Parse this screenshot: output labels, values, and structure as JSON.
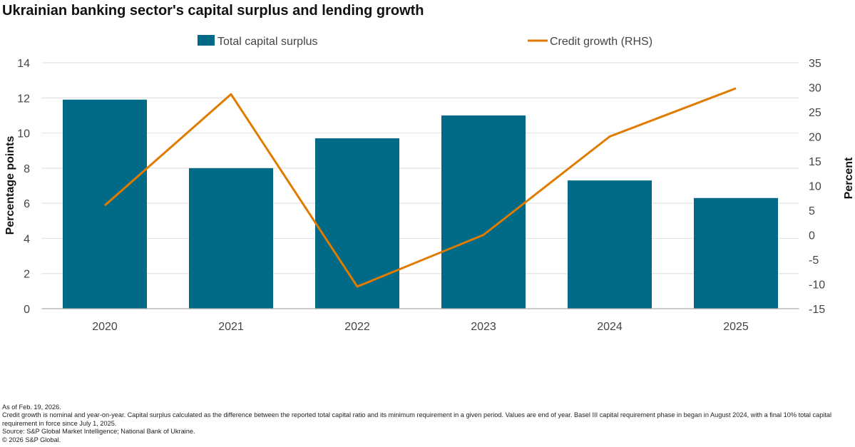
{
  "title": "Ukrainian banking sector's capital surplus and lending growth",
  "notes": [
    "As of Feb. 19, 2026.",
    "Credit growth is nominal and year-on-year. Capital surplus calculated as the difference between the reported total capital ratio and its minimum requirement in a given period. Values are end of year. Basel III capital requirement phase in began in August 2024, with a final 10% total capital requirement in force since July 1, 2025.",
    "Source: S&P Global Market Intelligence; National Bank of Ukraine.",
    "© 2026 S&P Global."
  ],
  "chart_data": {
    "type": "bar+line",
    "categories": [
      "2020",
      "2021",
      "2022",
      "2023",
      "2024",
      "2025"
    ],
    "series": [
      {
        "name": "Total capital surplus",
        "type": "bar",
        "axis": "left",
        "color": "#006a87",
        "values": [
          11.9,
          8.0,
          9.7,
          11.0,
          7.3,
          6.3
        ]
      },
      {
        "name": "Credit growth (RHS)",
        "type": "line",
        "axis": "right",
        "color": "#e07b00",
        "values": [
          6.0,
          28.6,
          -10.5,
          0.0,
          20.0,
          29.8
        ]
      }
    ],
    "ylabel": "Percentage points",
    "y2label": "Percent",
    "ylim": [
      0,
      14
    ],
    "yticks": [
      0,
      2,
      4,
      6,
      8,
      10,
      12,
      14
    ],
    "y2lim": [
      -15,
      35
    ],
    "y2ticks": [
      -15,
      -10,
      -5,
      0,
      5,
      10,
      15,
      20,
      25,
      30,
      35
    ],
    "grid": true,
    "legend": "top"
  }
}
